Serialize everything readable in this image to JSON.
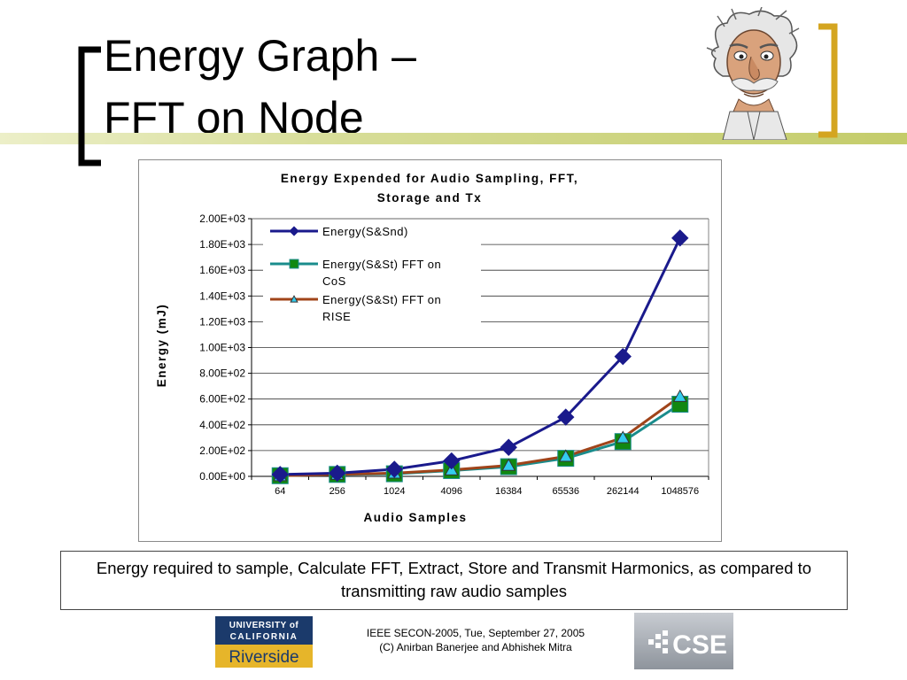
{
  "slide": {
    "title_line1": "Energy Graph –",
    "title_line2": "FFT on Node",
    "caption": "Energy required to sample, Calculate FFT, Extract, Store and Transmit Harmonics, as compared to transmitting raw audio samples",
    "footer_line1": "IEEE SECON-2005,  Tue, September 27, 2005",
    "footer_line2": "(C) Anirban Banerjee and Abhishek Mitra",
    "logo_ucr": {
      "line1": "UNIVERSITY of",
      "line2": "CALIFORNIA",
      "line3": "Riverside"
    },
    "logo_cse": "CSE"
  },
  "colors": {
    "accent_gold": "#d4a520",
    "accent_green": "#c4cc6a",
    "series_snd": "#1a1a8c",
    "series_cos": "#1a8c8c",
    "series_rise": "#a0441a",
    "marker_cos_fill": "#118811",
    "marker_rise_fill": "#33ccee"
  },
  "chart_data": {
    "type": "line",
    "title_line1": "Energy Expended for Audio Sampling, FFT,",
    "title_line2": "Storage and Tx",
    "xlabel": "Audio Samples",
    "ylabel": "Energy (mJ)",
    "categories": [
      "64",
      "256",
      "1024",
      "4096",
      "16384",
      "65536",
      "262144",
      "1048576"
    ],
    "y_ticks": [
      "0.00E+00",
      "2.00E+02",
      "4.00E+02",
      "6.00E+02",
      "8.00E+02",
      "1.00E+03",
      "1.20E+03",
      "1.40E+03",
      "1.60E+03",
      "1.80E+03",
      "2.00E+03"
    ],
    "ylim": [
      0,
      2000
    ],
    "grid": true,
    "legend_position": "top-left inside",
    "series": [
      {
        "name": "Energy(S&Snd)",
        "marker": "diamond",
        "values": [
          15,
          25,
          55,
          120,
          225,
          460,
          930,
          1850
        ]
      },
      {
        "name": "Energy(S&St) FFT on CoS",
        "marker": "square",
        "values": [
          5,
          15,
          20,
          45,
          75,
          140,
          270,
          560
        ]
      },
      {
        "name": "Energy(S&St) FFT on RISE",
        "marker": "triangle",
        "values": [
          5,
          15,
          25,
          50,
          85,
          155,
          300,
          620
        ]
      }
    ],
    "legend_lines": [
      [
        "Energy(S&Snd)"
      ],
      [
        "Energy(S&St) FFT on",
        "CoS"
      ],
      [
        "Energy(S&St) FFT on",
        "RISE"
      ]
    ]
  }
}
